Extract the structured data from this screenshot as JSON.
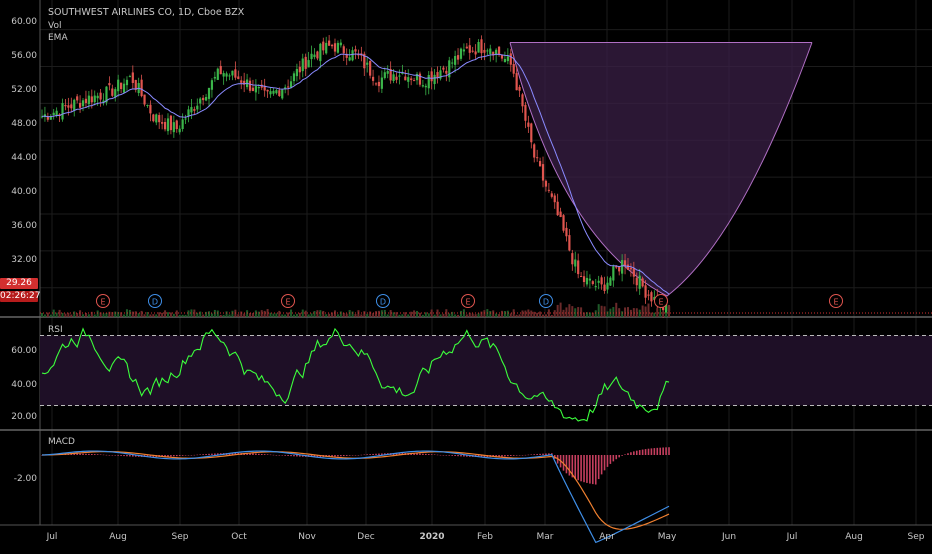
{
  "header": {
    "title": "SOUTHWEST AIRLINES CO, 1D, Cboe BZX",
    "vol_label": "Vol",
    "ema_label": "EMA"
  },
  "price_axis": {
    "ticks": [
      "60.00",
      "56.00",
      "52.00",
      "48.00",
      "44.00",
      "40.00",
      "36.00",
      "32.00"
    ],
    "last_price": "29.26",
    "countdown": "02:26:27"
  },
  "rsi": {
    "label": "RSI",
    "ticks": [
      "60.00",
      "40.00",
      "20.00"
    ]
  },
  "macd": {
    "label": "MACD",
    "tick": "-2.00"
  },
  "x_axis": {
    "ticks": [
      "Jul",
      "Aug",
      "Sep",
      "Oct",
      "Nov",
      "Dec",
      "2020",
      "Feb",
      "Mar",
      "Apr",
      "May",
      "Jun",
      "Jul",
      "Aug",
      "Sep"
    ]
  },
  "events": {
    "markers": [
      "E",
      "D",
      "E",
      "D",
      "E",
      "D",
      "E",
      "E"
    ]
  },
  "colors": {
    "up": "#3bb54a",
    "down": "#e0554f",
    "ema": "#8a8aff",
    "rsi": "#3cff3c",
    "cup_fill": "#3a1f45",
    "cup_line": "#b06fc4",
    "macd_line": "#3f8fe8",
    "signal_line": "#f08030",
    "hist": "#c63f5f",
    "badge_red": "#d32f2f"
  },
  "chart_data": {
    "type": "candlestick",
    "title": "SOUTHWEST AIRLINES CO, 1D, Cboe BZX",
    "price_anchors": [
      [
        "Jul",
        50.6
      ],
      [
        "Jul",
        51.5
      ],
      [
        "Jul",
        52.5
      ],
      [
        "Jul",
        53.2
      ],
      [
        "Aug",
        54.8
      ],
      [
        "Aug",
        50.5
      ],
      [
        "Aug",
        49.2
      ],
      [
        "Sep",
        52.4
      ],
      [
        "Sep",
        55.5
      ],
      [
        "Oct",
        54.5
      ],
      [
        "Oct",
        52.6
      ],
      [
        "Oct",
        54.2
      ],
      [
        "Nov",
        57.2
      ],
      [
        "Nov",
        58.3
      ],
      [
        "Dec",
        57.3
      ],
      [
        "Dec",
        54.6
      ],
      [
        "Dec",
        55.4
      ],
      [
        "2020",
        54.5
      ],
      [
        "2020",
        55.9
      ],
      [
        "Feb",
        57.8
      ],
      [
        "Feb",
        58.3
      ],
      [
        "Feb",
        56.0
      ],
      [
        "Mar",
        46.0
      ],
      [
        "Mar",
        40.0
      ],
      [
        "Mar",
        33.0
      ],
      [
        "Apr",
        32.0
      ],
      [
        "Apr",
        35.0
      ],
      [
        "Apr",
        31.5
      ],
      [
        "May",
        29.3
      ]
    ],
    "ylim": [
      28.5,
      60.5
    ],
    "rsi_range": [
      0,
      100
    ],
    "rsi_levels": [
      70,
      30
    ]
  }
}
